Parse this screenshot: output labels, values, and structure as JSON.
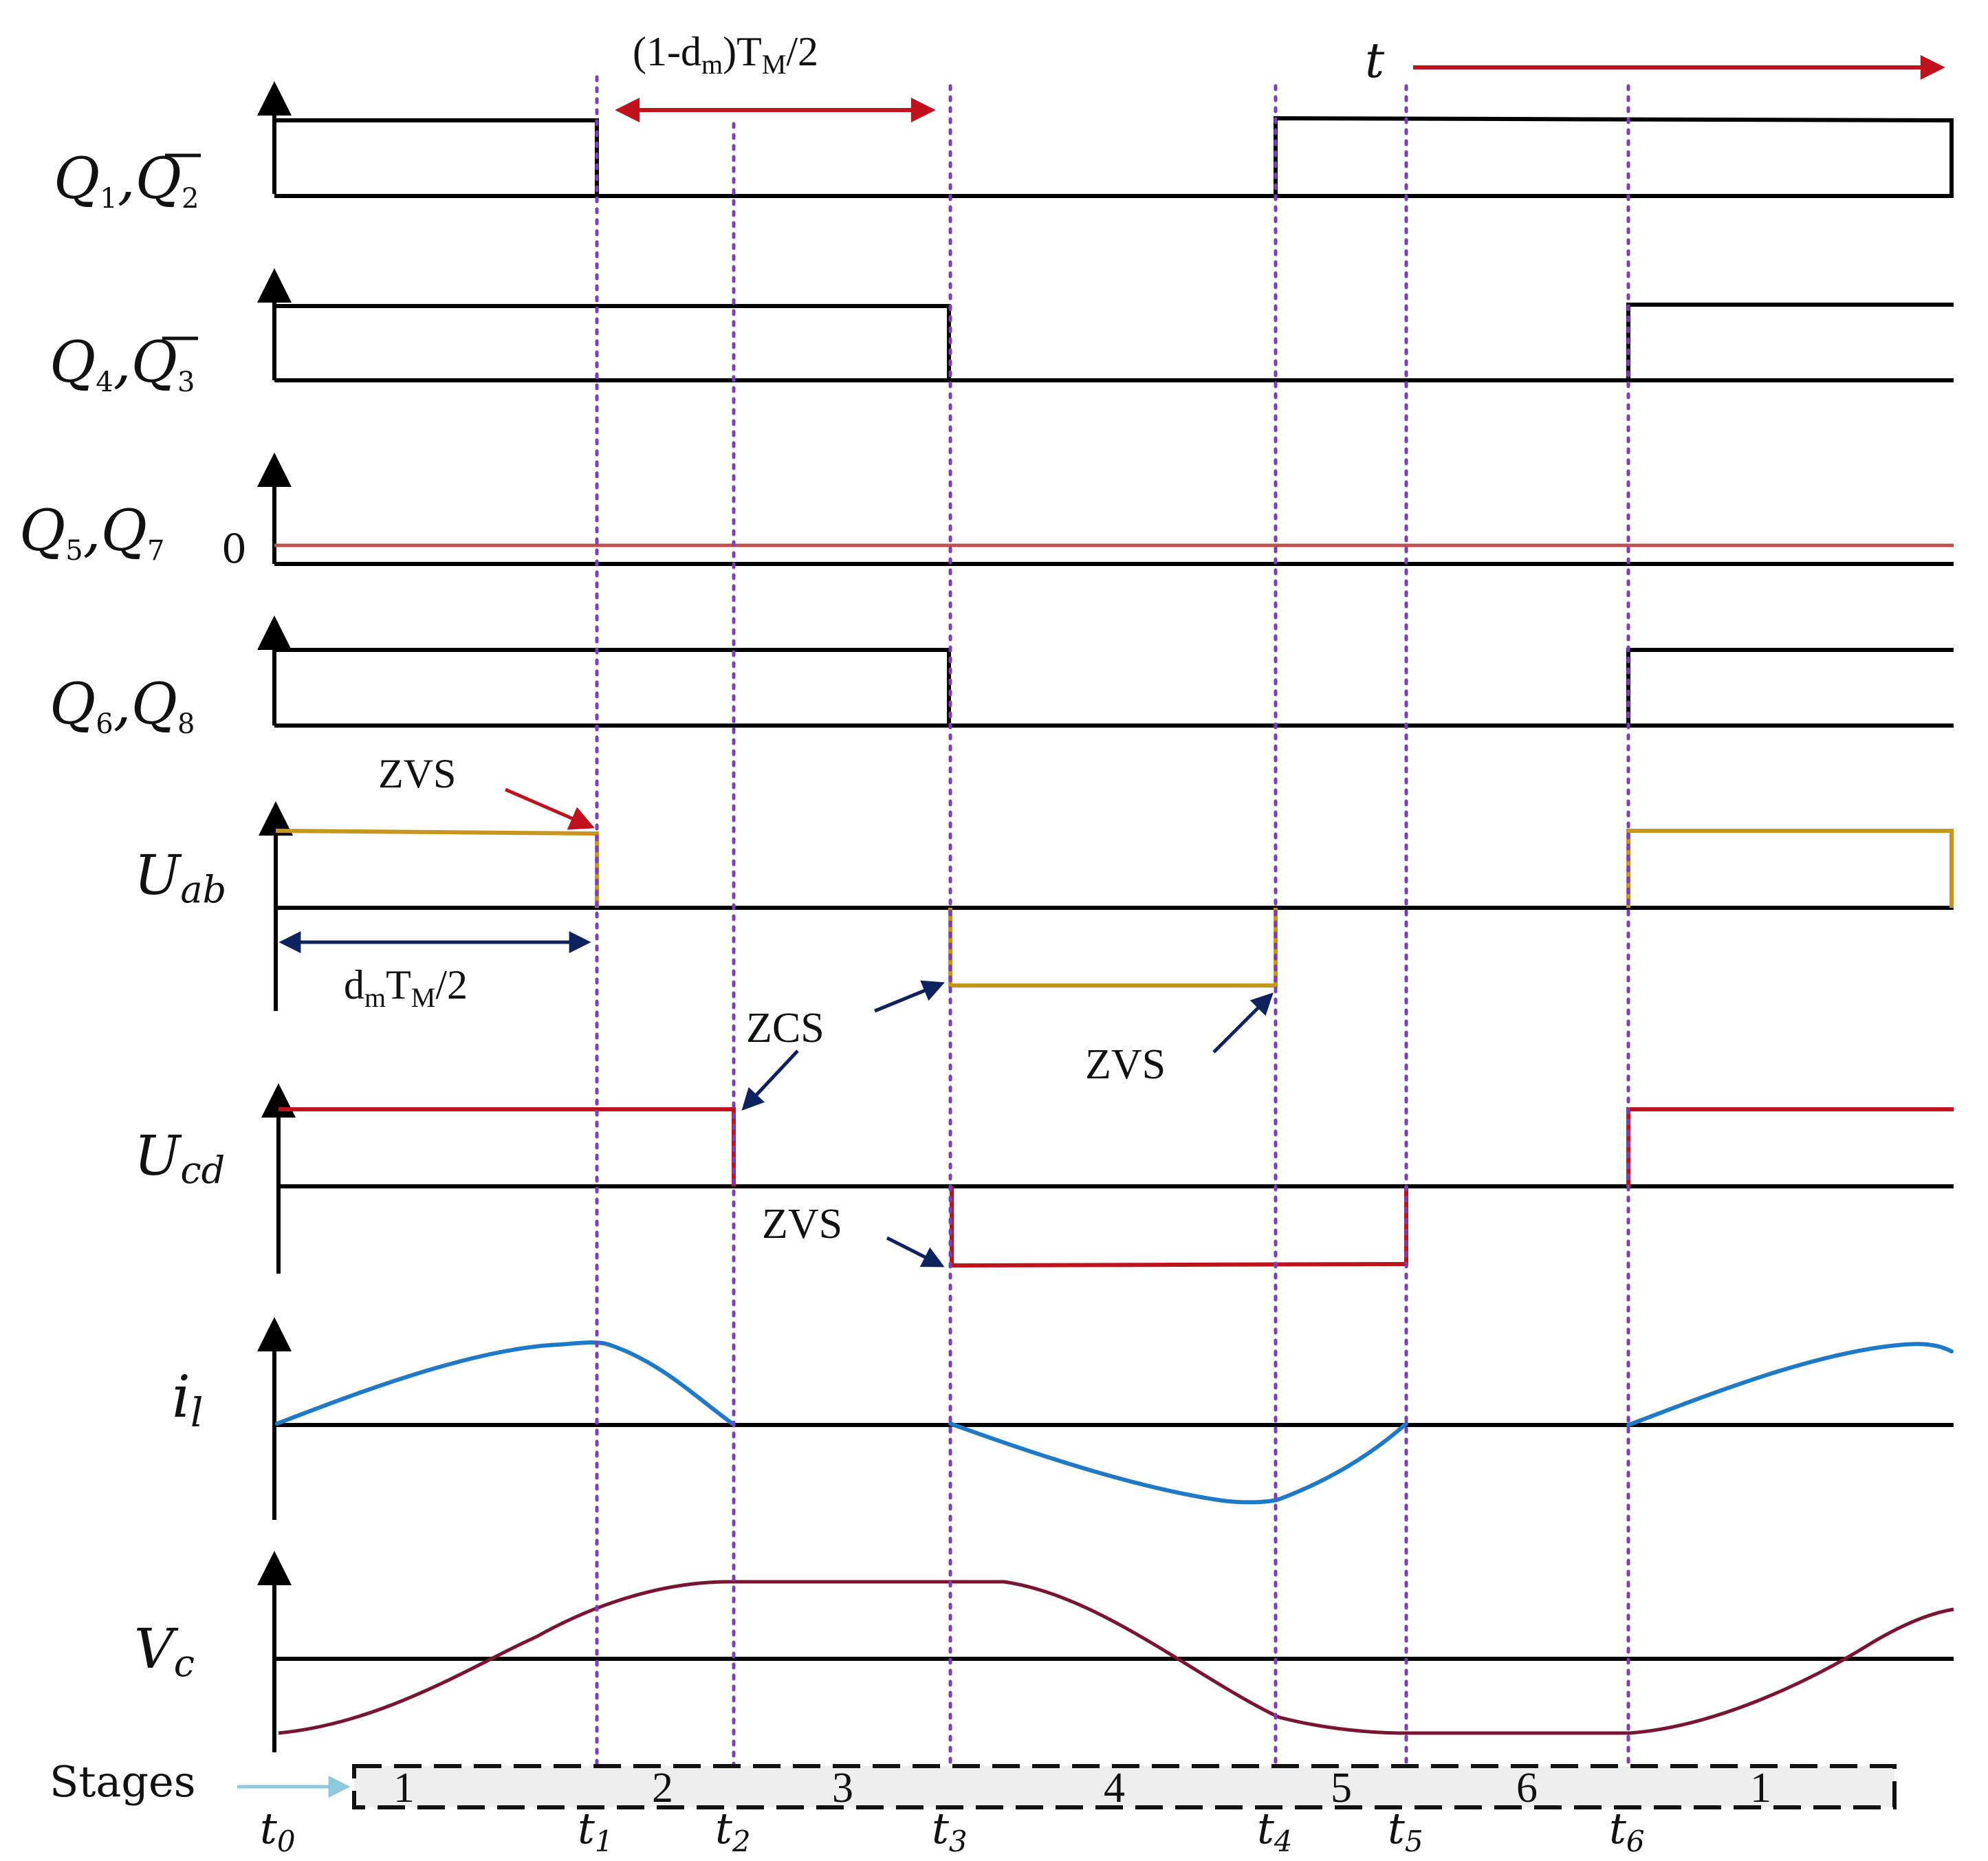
{
  "signals": {
    "q12": {
      "main1": "Q",
      "sub1": "1",
      "sep": ",",
      "main2": "Q",
      "sub2": "2"
    },
    "q43": {
      "main1": "Q",
      "sub1": "4",
      "sep": ",",
      "main2": "Q",
      "sub2": "3"
    },
    "q57": {
      "main1": "Q",
      "sub1": "5",
      "sep": ",",
      "main2": "Q",
      "sub2": "7",
      "zero": "0"
    },
    "q68": {
      "main1": "Q",
      "sub1": "6",
      "sep": ",",
      "main2": "Q",
      "sub2": "8"
    },
    "uab": {
      "main": "U",
      "sub": "ab"
    },
    "ucd": {
      "main": "U",
      "sub": "cd"
    },
    "il": {
      "main": "i",
      "sub": "l"
    },
    "vc": {
      "main": "V",
      "sub": "c"
    }
  },
  "annotations": {
    "top_dim": {
      "a": "(1-d",
      "b": "m",
      "c": ")T",
      "d": "M",
      "e": "/2"
    },
    "left_dim": {
      "a": "d",
      "b": "m",
      "c": "T",
      "d": "M",
      "e": "/2"
    },
    "time_axis": "t",
    "zvs": "ZVS",
    "zcs": "ZCS"
  },
  "time_labels": [
    {
      "main": "t",
      "sub": "0"
    },
    {
      "main": "t",
      "sub": "1"
    },
    {
      "main": "t",
      "sub": "2"
    },
    {
      "main": "t",
      "sub": "3"
    },
    {
      "main": "t",
      "sub": "4"
    },
    {
      "main": "t",
      "sub": "5"
    },
    {
      "main": "t",
      "sub": "6"
    }
  ],
  "stages": {
    "label": "Stages",
    "numbers": [
      "1",
      "2",
      "3",
      "4",
      "5",
      "6",
      "1"
    ]
  },
  "colors": {
    "uab": "#c8961e",
    "ucd": "#c0111c",
    "il": "#1e7ac8",
    "vc": "#7a1430",
    "q57": "#c0504d",
    "time_marker": "#7b3fb8",
    "red_arrow": "#c0111c",
    "navy_arrow": "#0f2260",
    "stages_arrow": "#8fc8dc",
    "stages_fill": "#eeeeee"
  }
}
